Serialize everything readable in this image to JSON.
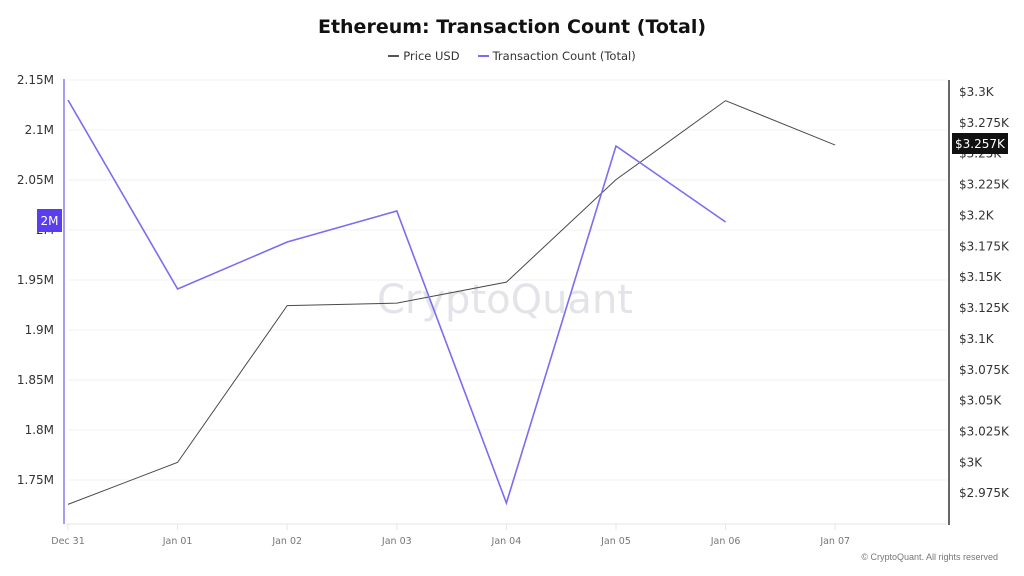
{
  "header": {
    "title": "Ethereum: Transaction Count (Total)"
  },
  "legend": {
    "items": [
      {
        "label": "Price USD",
        "color": "#555555"
      },
      {
        "label": "Transaction Count (Total)",
        "color": "#7b6cf2"
      }
    ]
  },
  "highlights": {
    "left_axis_value": "2M",
    "right_axis_value": "$3.257K"
  },
  "watermark": "CryptoQuant",
  "footer": {
    "copyright": "© CryptoQuant. All rights reserved"
  },
  "colors": {
    "tx_line": "#7b6cf2",
    "price_line": "#4a4a4a",
    "left_axis": "#a89cf3",
    "right_axis": "#333333",
    "left_highlight_bg": "#5b3df0",
    "right_highlight_bg": "#111111",
    "grid": "#f0f0f0"
  },
  "chart_data": {
    "type": "line",
    "title": "Ethereum: Transaction Count (Total)",
    "categories": [
      "Dec 31",
      "Jan 01",
      "Jan 02",
      "Jan 03",
      "Jan 04",
      "Jan 05",
      "Jan 06",
      "Jan 07"
    ],
    "series": [
      {
        "name": "Transaction Count (Total)",
        "axis": "left",
        "color": "#7b6cf2",
        "values": [
          2130000,
          1941000,
          1988000,
          2019000,
          1727000,
          2084000,
          2008000,
          null
        ]
      },
      {
        "name": "Price USD",
        "axis": "right",
        "color": "#4a4a4a",
        "values": [
          2966,
          3000,
          3127,
          3129,
          3146,
          3229,
          3293,
          3257
        ]
      }
    ],
    "left_axis": {
      "label": "",
      "ticks": [
        "2.15M",
        "2.1M",
        "2.05M",
        "2M",
        "1.95M",
        "1.9M",
        "1.85M",
        "1.8M",
        "1.75M"
      ],
      "tick_values": [
        2150000,
        2100000,
        2050000,
        2000000,
        1950000,
        1900000,
        1850000,
        1800000,
        1750000
      ],
      "ylim": [
        1705000,
        2150000
      ]
    },
    "right_axis": {
      "label": "",
      "ticks": [
        "$3.3K",
        "$3.275K",
        "$3.25K",
        "$3.225K",
        "$3.2K",
        "$3.175K",
        "$3.15K",
        "$3.125K",
        "$3.1K",
        "$3.075K",
        "$3.05K",
        "$3.025K",
        "$3K",
        "$2.975K"
      ],
      "tick_values": [
        3300,
        3275,
        3250,
        3225,
        3200,
        3175,
        3150,
        3125,
        3100,
        3075,
        3050,
        3025,
        3000,
        2975
      ],
      "ylim": [
        2960,
        3310
      ]
    },
    "xlabel": "",
    "grid": true,
    "legend_position": "top"
  }
}
